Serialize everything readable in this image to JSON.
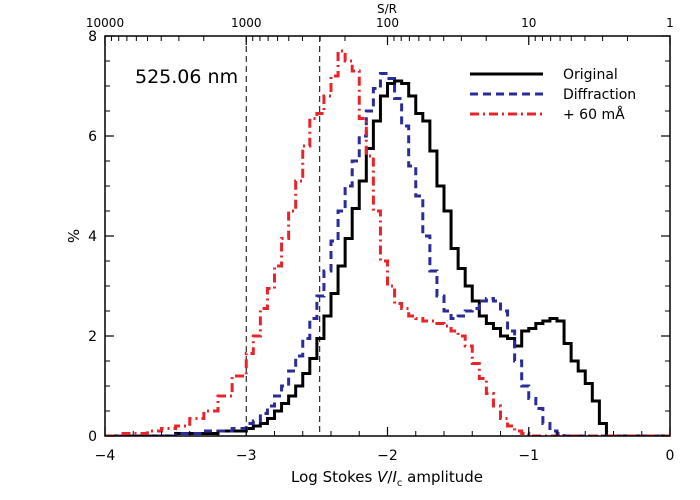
{
  "chart_data": {
    "type": "line",
    "drawstyle": "steps",
    "title": "",
    "xlabel_prefix": "Log Stokes ",
    "xlabel_v": "V",
    "xlabel_slash": "/",
    "xlabel_i": "I",
    "xlabel_sub": "c",
    "xlabel_suffix": " amplitude",
    "ylabel": "%",
    "top_axis_label": "S/R",
    "annotation": "525.06 nm",
    "xlim": [
      -4,
      0
    ],
    "ylim": [
      0,
      8
    ],
    "x_ticks": [
      -4,
      -3,
      -2,
      -1,
      0
    ],
    "x_tick_labels": [
      "−4",
      "−3",
      "−2",
      "−1",
      "0"
    ],
    "y_ticks": [
      0,
      2,
      4,
      6,
      8
    ],
    "y_tick_labels": [
      "0",
      "2",
      "4",
      "6",
      "8"
    ],
    "top_ticks": [
      {
        "x": -4,
        "label": "10000"
      },
      {
        "x": -3,
        "label": "1000"
      },
      {
        "x": -2,
        "label": "100"
      },
      {
        "x": -1,
        "label": "10"
      },
      {
        "x": 0,
        "label": "1"
      }
    ],
    "vlines": [
      -3.0,
      -2.48
    ],
    "legend_position": "top-right",
    "bin_edges": [
      -4.0,
      -3.9,
      -3.8,
      -3.7,
      -3.6,
      -3.5,
      -3.4,
      -3.3,
      -3.2,
      -3.1,
      -3.0,
      -2.95,
      -2.9,
      -2.85,
      -2.8,
      -2.75,
      -2.7,
      -2.65,
      -2.6,
      -2.55,
      -2.5,
      -2.45,
      -2.4,
      -2.35,
      -2.3,
      -2.25,
      -2.2,
      -2.15,
      -2.1,
      -2.05,
      -2.0,
      -1.95,
      -1.9,
      -1.85,
      -1.8,
      -1.75,
      -1.7,
      -1.65,
      -1.6,
      -1.55,
      -1.5,
      -1.45,
      -1.4,
      -1.35,
      -1.3,
      -1.25,
      -1.2,
      -1.15,
      -1.1,
      -1.05,
      -1.0,
      -0.95,
      -0.9,
      -0.85,
      -0.8,
      -0.75,
      -0.7,
      -0.65,
      -0.6,
      -0.55,
      -0.5,
      -0.45,
      -0.4,
      -0.35,
      -0.3,
      -0.25,
      -0.2,
      -0.15,
      -0.1,
      0.0
    ],
    "series": [
      {
        "name": "Original",
        "color": "#000000",
        "dash": "solid",
        "values": [
          0.0,
          0.0,
          0.0,
          0.0,
          0.0,
          0.05,
          0.05,
          0.05,
          0.1,
          0.1,
          0.15,
          0.2,
          0.25,
          0.35,
          0.5,
          0.65,
          0.8,
          1.0,
          1.25,
          1.55,
          1.95,
          2.4,
          2.85,
          3.4,
          3.95,
          4.55,
          5.1,
          5.75,
          6.3,
          6.8,
          7.05,
          7.1,
          7.05,
          6.8,
          6.45,
          6.3,
          5.7,
          5.0,
          4.5,
          3.75,
          3.35,
          3.0,
          2.7,
          2.4,
          2.25,
          2.15,
          2.0,
          1.95,
          1.8,
          2.1,
          2.15,
          2.25,
          2.3,
          2.35,
          2.3,
          1.85,
          1.5,
          1.3,
          1.05,
          0.7,
          0.25,
          0.0,
          0.0,
          0.0,
          0.0,
          0.0,
          0.0,
          0.0,
          0.0
        ]
      },
      {
        "name": "Diffraction",
        "color": "#2b2b9b",
        "dash": "dashed",
        "values": [
          0.0,
          0.0,
          0.0,
          0.0,
          0.0,
          0.05,
          0.05,
          0.1,
          0.1,
          0.15,
          0.25,
          0.3,
          0.45,
          0.6,
          0.8,
          1.0,
          1.3,
          1.6,
          1.95,
          2.35,
          2.8,
          3.3,
          3.9,
          4.5,
          5.0,
          5.5,
          6.0,
          6.5,
          6.95,
          7.25,
          7.15,
          6.75,
          6.2,
          5.4,
          4.8,
          4.0,
          3.3,
          2.8,
          2.5,
          2.35,
          2.4,
          2.5,
          2.55,
          2.7,
          2.75,
          2.7,
          2.5,
          2.1,
          1.5,
          1.0,
          0.75,
          0.55,
          0.25,
          0.1,
          0.05,
          0.0,
          0.0,
          0.0,
          0.0,
          0.0,
          0.0,
          0.0,
          0.0,
          0.0,
          0.0,
          0.0,
          0.0,
          0.0,
          0.0
        ]
      },
      {
        "name": "+ 60 mÅ",
        "color": "#e8242a",
        "dash": "dashdot",
        "values": [
          0.0,
          0.05,
          0.05,
          0.1,
          0.15,
          0.2,
          0.35,
          0.5,
          0.8,
          1.2,
          1.65,
          2.0,
          2.55,
          2.95,
          3.4,
          3.95,
          4.5,
          5.1,
          5.8,
          6.35,
          6.45,
          6.8,
          7.2,
          7.7,
          7.5,
          7.3,
          6.35,
          5.6,
          4.5,
          3.5,
          3.0,
          2.65,
          2.55,
          2.4,
          2.35,
          2.3,
          2.3,
          2.25,
          2.2,
          2.1,
          2.0,
          1.8,
          1.45,
          1.15,
          0.85,
          0.6,
          0.35,
          0.2,
          0.1,
          0.05,
          0.0,
          0.0,
          0.0,
          0.0,
          0.0,
          0.0,
          0.0,
          0.0,
          0.0,
          0.0,
          0.0,
          0.0,
          0.0,
          0.0,
          0.0,
          0.0,
          0.0,
          0.0,
          0.0
        ]
      }
    ]
  }
}
